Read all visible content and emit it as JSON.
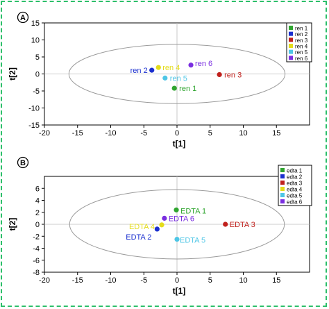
{
  "chart_data": [
    {
      "panel_letter": "A",
      "type": "scatter",
      "xlabel": "t[1]",
      "ylabel": "t[2]",
      "xlim": [
        -20,
        20
      ],
      "ylim": [
        -15,
        15
      ],
      "xticks": [
        -20,
        -15,
        -10,
        -5,
        0,
        5,
        10,
        15
      ],
      "yticks": [
        15,
        10,
        5,
        0,
        -5,
        -10,
        -15
      ],
      "grid": false,
      "legend_position": "top-right",
      "ellipse": {
        "center": [
          0,
          0
        ],
        "rx": 16.3,
        "ry": 8.7
      },
      "series": [
        {
          "name": "ren 1",
          "color": "#2fa52f",
          "x": -0.4,
          "y": -4.2,
          "label": "ren 1"
        },
        {
          "name": "ren 2",
          "color": "#1a2fcf",
          "x": -3.8,
          "y": 1.1,
          "label": "ren 2"
        },
        {
          "name": "ren 3",
          "color": "#c0201c",
          "x": 6.4,
          "y": -0.2,
          "label": "ren 3"
        },
        {
          "name": "ren 4",
          "color": "#e4dc1a",
          "x": -2.8,
          "y": 1.9,
          "label": "ren 4"
        },
        {
          "name": "ren 5",
          "color": "#4ec6e6",
          "x": -1.8,
          "y": -1.2,
          "label": "ren 5"
        },
        {
          "name": "ren 6",
          "color": "#7a2ee0",
          "x": 2.1,
          "y": 2.6,
          "label": "ren 6"
        }
      ]
    },
    {
      "panel_letter": "B",
      "type": "scatter",
      "xlabel": "t[1]",
      "ylabel": "t[2]",
      "xlim": [
        -20,
        20
      ],
      "ylim": [
        -8,
        8
      ],
      "xticks": [
        -20,
        -15,
        -10,
        -5,
        0,
        5,
        10,
        15
      ],
      "yticks": [
        6,
        4,
        2,
        0,
        -2,
        -4,
        -6,
        -8
      ],
      "grid": false,
      "legend_position": "top-right",
      "ellipse": {
        "center": [
          0,
          0
        ],
        "rx": 16.2,
        "ry": 5.8
      },
      "series": [
        {
          "name": "edta 1",
          "color": "#2fa52f",
          "x": -0.1,
          "y": 2.4,
          "label": "EDTA 1"
        },
        {
          "name": "edta 2",
          "color": "#1a2fcf",
          "x": -3.0,
          "y": -0.8,
          "label": "EDTA 2"
        },
        {
          "name": "edta 3",
          "color": "#c0201c",
          "x": 7.3,
          "y": 0.0,
          "label": "EDTA 3"
        },
        {
          "name": "edta 4",
          "color": "#e4dc1a",
          "x": -2.3,
          "y": -0.1,
          "label": "EDTA 4"
        },
        {
          "name": "edta 5",
          "color": "#4ec6e6",
          "x": 0.0,
          "y": -2.5,
          "label": "EDTA 5"
        },
        {
          "name": "edta 6",
          "color": "#7a2ee0",
          "x": -1.9,
          "y": 1.0,
          "label": "EDTA 6"
        }
      ]
    }
  ]
}
